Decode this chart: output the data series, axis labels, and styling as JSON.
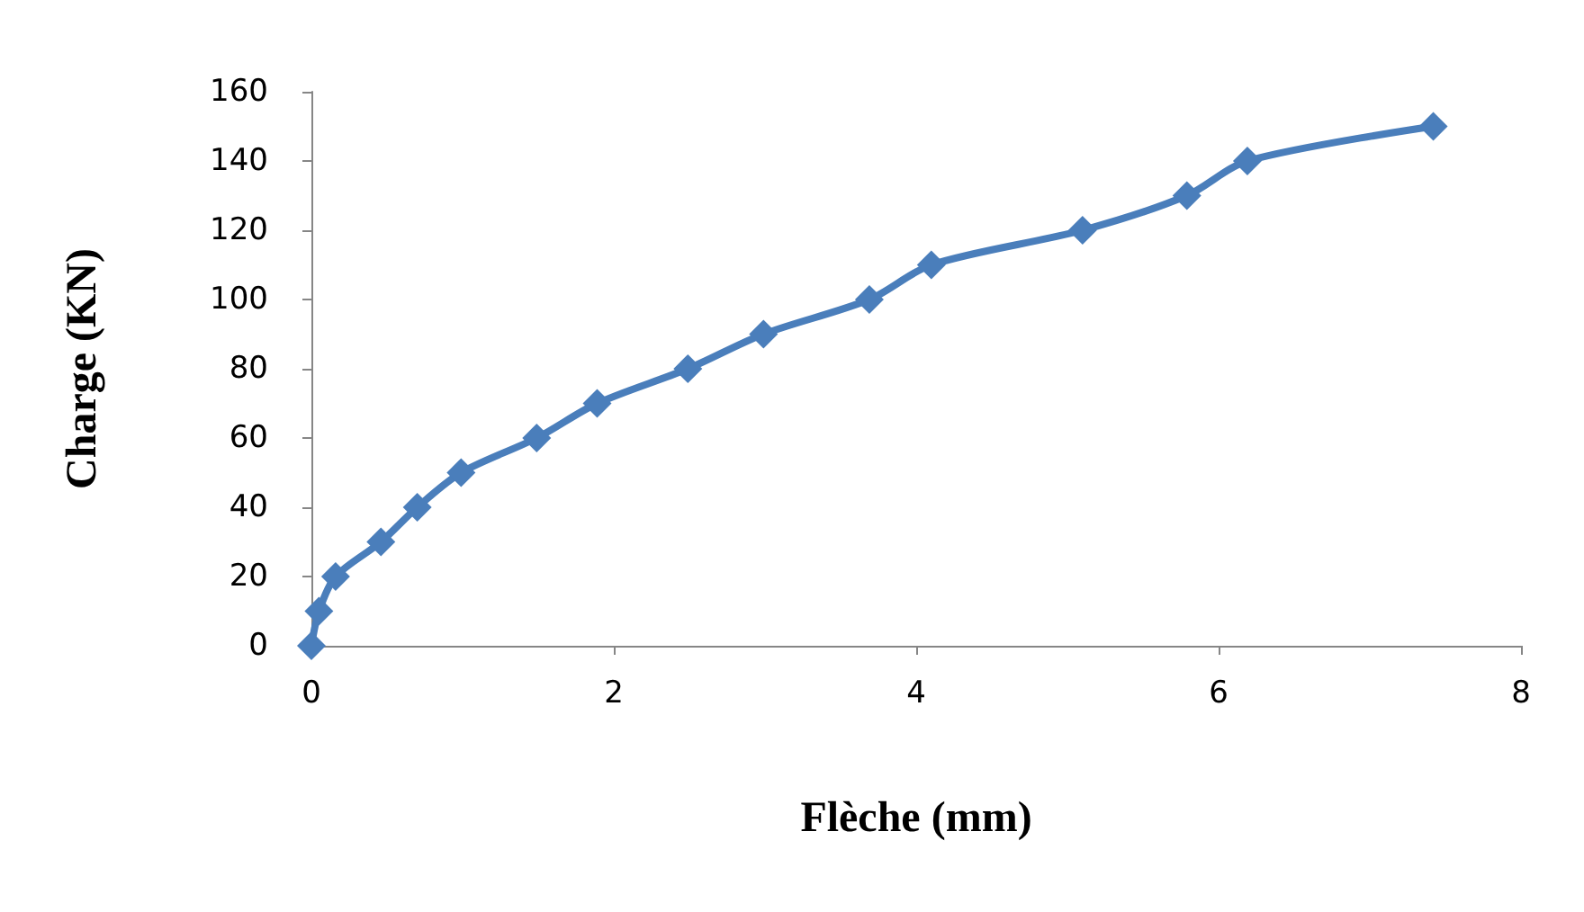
{
  "chart_data": {
    "type": "line",
    "xlabel": "Flèche (mm)",
    "ylabel": "Charge (KN)",
    "x": [
      0,
      0.05,
      0.16,
      0.46,
      0.7,
      0.99,
      1.49,
      1.89,
      2.49,
      2.99,
      3.69,
      4.1,
      5.1,
      5.79,
      6.19,
      7.42
    ],
    "series": [
      {
        "color": "#4a7ebb",
        "values": [
          0,
          10,
          20,
          30,
          40,
          50,
          60,
          70,
          80,
          90,
          100,
          110,
          120,
          130,
          140,
          150
        ]
      }
    ],
    "xlim": [
      0,
      8
    ],
    "xticks": [
      0,
      2,
      4,
      6,
      8
    ],
    "ylim": [
      0,
      160
    ],
    "yticks": [
      0,
      20,
      40,
      60,
      80,
      100,
      120,
      140,
      160
    ],
    "grid": false,
    "marker": "diamond",
    "line_style": "solid"
  }
}
